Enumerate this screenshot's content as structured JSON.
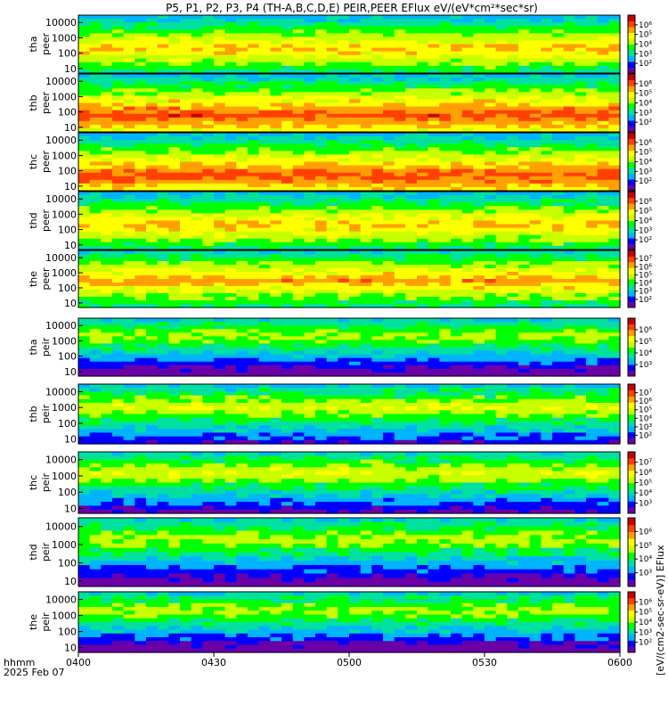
{
  "chart_data": {
    "type": "heatmap",
    "title": "P5, P1, P2, P3, P4 (TH-A,B,C,D,E) PEIR,PEER EFlux eV/(eV*cm²*sec*sr)",
    "x_axis": {
      "label_lines": [
        "hhmm",
        "2025 Feb 07"
      ],
      "range": [
        "04:00",
        "06:00"
      ],
      "ticks": [
        "0400",
        "0430",
        "0500",
        "0530",
        "0600"
      ]
    },
    "y_axis": {
      "scale": "log",
      "ticks": [
        "10",
        "100",
        "1000",
        "10000"
      ],
      "range_eV": [
        5,
        30000
      ]
    },
    "colorbar_label": "[eV/(cm2-sec-sr-eV)] EFlux",
    "colormap": [
      "#6a00a8",
      "#0000ff",
      "#00b4ff",
      "#00e0a0",
      "#00ff00",
      "#c8ff00",
      "#ffff00",
      "#ffa000",
      "#ff4000",
      "#c80000"
    ],
    "panels": [
      {
        "line1": "tha",
        "line2": "peer",
        "cbar_ticks": [
          "10²",
          "10³",
          "10⁴",
          "10⁵",
          "10⁶"
        ],
        "mean_level": 0.72,
        "peak_energy_eV": 200
      },
      {
        "line1": "thb",
        "line2": "peer",
        "cbar_ticks": [
          "10²",
          "10³",
          "10⁴",
          "10⁵",
          "10⁶"
        ],
        "mean_level": 0.85,
        "peak_energy_eV": 60
      },
      {
        "line1": "thc",
        "line2": "peer",
        "cbar_ticks": [
          "10²",
          "10³",
          "10⁴",
          "10⁵",
          "10⁶"
        ],
        "mean_level": 0.85,
        "peak_energy_eV": 50
      },
      {
        "line1": "thd",
        "line2": "peer",
        "cbar_ticks": [
          "10²",
          "10³",
          "10⁴",
          "10⁵",
          "10⁶"
        ],
        "mean_level": 0.72,
        "peak_energy_eV": 200
      },
      {
        "line1": "the",
        "line2": "peer",
        "cbar_ticks": [
          "10²",
          "10³",
          "10⁴",
          "10⁵",
          "10⁶",
          "10⁷"
        ],
        "mean_level": 0.75,
        "peak_energy_eV": 300
      },
      {
        "line1": "tha",
        "line2": "peir",
        "cbar_ticks": [
          "10³",
          "10⁴",
          "10⁵",
          "10⁶"
        ],
        "mean_level": 0.55,
        "peak_energy_eV": 2000
      },
      {
        "line1": "thb",
        "line2": "peir",
        "cbar_ticks": [
          "10²",
          "10³",
          "10⁴",
          "10⁵",
          "10⁶",
          "10⁷"
        ],
        "mean_level": 0.6,
        "peak_energy_eV": 1000
      },
      {
        "line1": "thc",
        "line2": "peir",
        "cbar_ticks": [
          "10³",
          "10⁴",
          "10⁵",
          "10⁶",
          "10⁷"
        ],
        "mean_level": 0.6,
        "peak_energy_eV": 1500
      },
      {
        "line1": "thd",
        "line2": "peir",
        "cbar_ticks": [
          "10³",
          "10⁴",
          "10⁵",
          "10⁶"
        ],
        "mean_level": 0.55,
        "peak_energy_eV": 2000
      },
      {
        "line1": "the",
        "line2": "peir",
        "cbar_ticks": [
          "10²",
          "10³",
          "10⁴",
          "10⁵",
          "10⁶"
        ],
        "mean_level": 0.55,
        "peak_energy_eV": 2000
      }
    ]
  }
}
